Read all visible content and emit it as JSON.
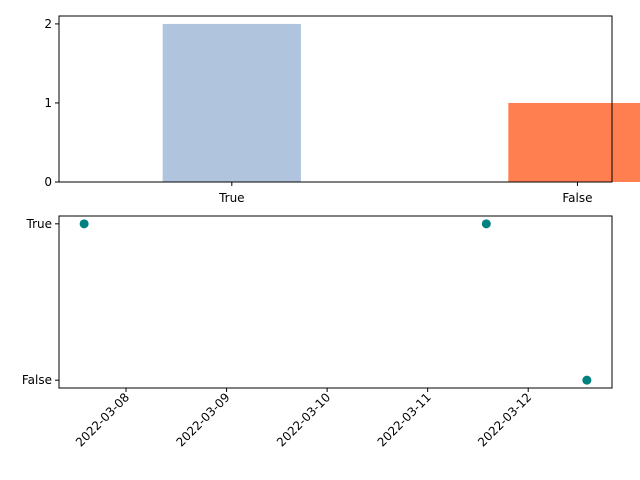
{
  "chart_data": [
    {
      "type": "bar",
      "categories": [
        "True",
        "False"
      ],
      "values": [
        2,
        1
      ],
      "colors": [
        "#b0c4de",
        "#ff7f50"
      ],
      "ylim": [
        0,
        2.1
      ],
      "yticks": [
        0,
        1,
        2
      ],
      "title": "",
      "xlabel": "",
      "ylabel": "",
      "grid": false
    },
    {
      "type": "scatter",
      "x": [
        "2022-03-07 14:00",
        "2022-03-11 14:00",
        "2022-03-12 14:00"
      ],
      "y": [
        "True",
        "True",
        "False"
      ],
      "y_categories": [
        "False",
        "True"
      ],
      "color": "#008080",
      "xticks": [
        "2022-03-08",
        "2022-03-09",
        "2022-03-10",
        "2022-03-11",
        "2022-03-12"
      ],
      "title": "",
      "xlabel": "",
      "ylabel": "",
      "grid": false
    }
  ]
}
